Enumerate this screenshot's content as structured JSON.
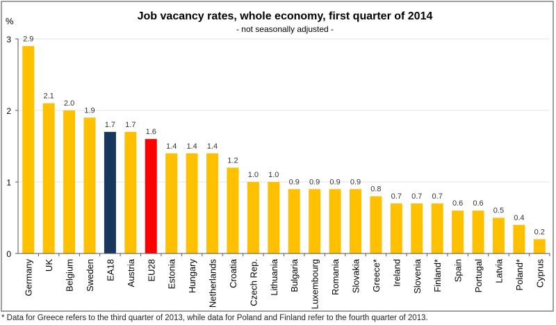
{
  "chart_data": {
    "type": "bar",
    "title": "Job vacancy rates, whole economy, first quarter of 2014",
    "subtitle": "- not seasonally adjusted -",
    "ylabel": "%",
    "xlabel": "",
    "ylim": [
      0,
      3
    ],
    "yticks": [
      "0",
      "1",
      "2",
      "3"
    ],
    "grid": true,
    "categories": [
      "Germany",
      "UK",
      "Belgium",
      "Sweden",
      "EA18",
      "Austria",
      "EU28",
      "Estonia",
      "Hungary",
      "Netherlands",
      "Croatia",
      "Czech Rep.",
      "Lithuania",
      "Bulgaria",
      "Luxembourg",
      "Romania",
      "Slovakia",
      "Greece*",
      "Ireland",
      "Slovenia",
      "Finland*",
      "Spain",
      "Portugal",
      "Latvia",
      "Poland*",
      "Cyprus"
    ],
    "values": [
      2.9,
      2.1,
      2.0,
      1.9,
      1.7,
      1.7,
      1.6,
      1.4,
      1.4,
      1.4,
      1.2,
      1.0,
      1.0,
      0.9,
      0.9,
      0.9,
      0.9,
      0.8,
      0.7,
      0.7,
      0.7,
      0.6,
      0.6,
      0.5,
      0.4,
      0.2
    ],
    "data_labels": [
      "2.9",
      "2.1",
      "2.0",
      "1.9",
      "1.7",
      "1.7",
      "1.6",
      "1.4",
      "1.4",
      "1.4",
      "1.2",
      "1.0",
      "1.0",
      "0.9",
      "0.9",
      "0.9",
      "0.9",
      "0.8",
      "0.7",
      "0.7",
      "0.7",
      "0.6",
      "0.6",
      "0.5",
      "0.4",
      "0.2"
    ],
    "colors": {
      "default": "#FFC000",
      "EA18": "#17375E",
      "EU28": "#FF0000"
    }
  },
  "footnote": "* Data for Greece refers to the third quarter of 2013, while data for Poland and Finland refer to the fourth quarter of 2013."
}
